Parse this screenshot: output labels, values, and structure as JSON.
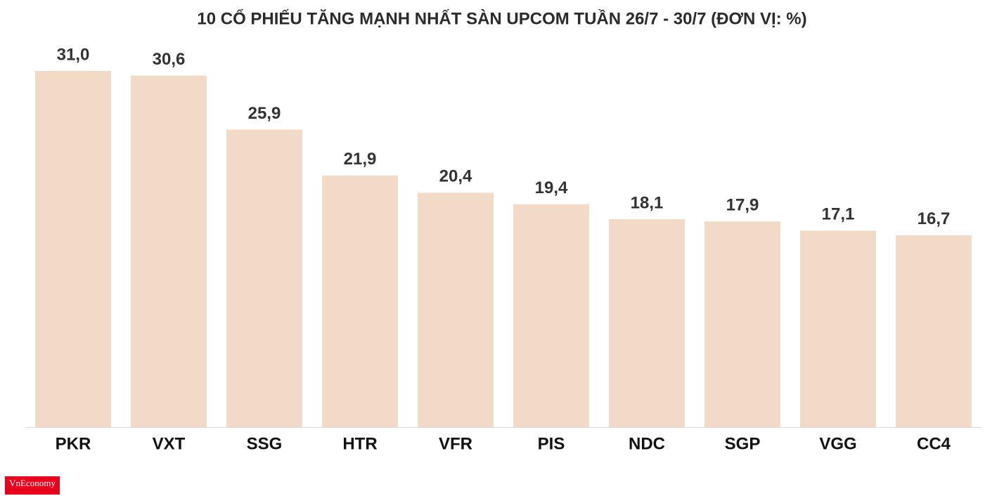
{
  "chart_data": {
    "type": "bar",
    "title": "10 CỔ PHIẾU TĂNG MẠNH NHẤT SÀN UPCOM TUẦN 26/7 - 30/7 (ĐƠN VỊ: %)",
    "categories": [
      "PKR",
      "VXT",
      "SSG",
      "HTR",
      "VFR",
      "PIS",
      "NDC",
      "SGP",
      "VGG",
      "CC4"
    ],
    "values": [
      31.0,
      30.6,
      25.9,
      21.9,
      20.4,
      19.4,
      18.1,
      17.9,
      17.1,
      16.7
    ],
    "value_labels": [
      "31,0",
      "30,6",
      "25,9",
      "21,9",
      "20,4",
      "19,4",
      "18,1",
      "17,9",
      "17,1",
      "16,7"
    ],
    "color": "#f2dbc6",
    "ylim": [
      0,
      31
    ],
    "source": "VnEconomy"
  }
}
